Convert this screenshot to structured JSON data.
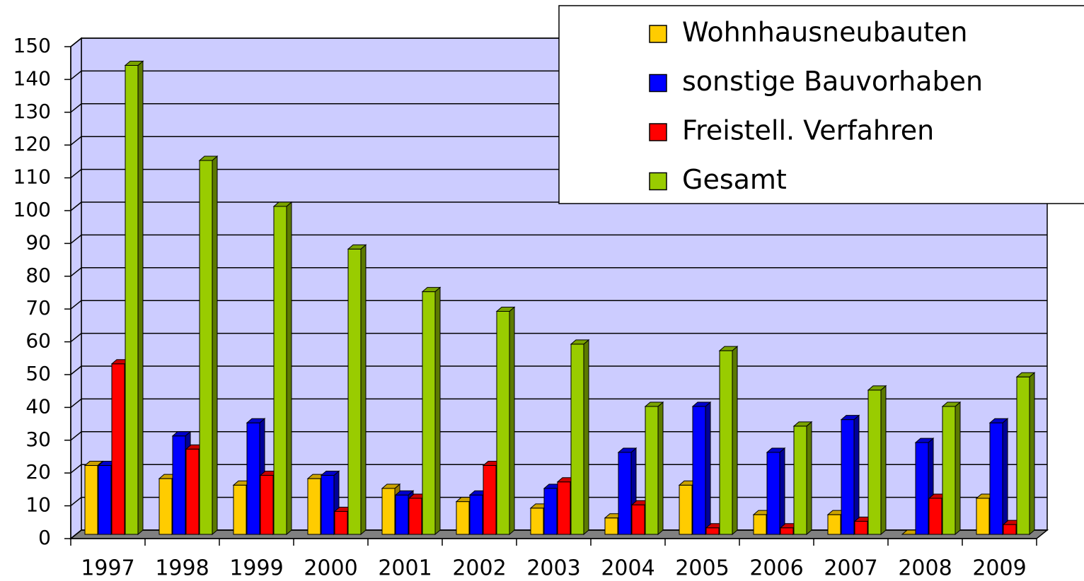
{
  "chart_data": {
    "type": "bar3d",
    "categories": [
      "1997",
      "1998",
      "1999",
      "2000",
      "2001",
      "2002",
      "2003",
      "2004",
      "2005",
      "2006",
      "2007",
      "2008",
      "2009"
    ],
    "series": [
      {
        "name": "Wohnhausneubauten",
        "color": "#ffcc00",
        "values": [
          21,
          17,
          15,
          17,
          14,
          10,
          8,
          5,
          15,
          6,
          6,
          0,
          11
        ]
      },
      {
        "name": "sonstige Bauvorhaben",
        "color": "#0000ff",
        "values": [
          21,
          30,
          34,
          18,
          12,
          12,
          14,
          25,
          39,
          25,
          35,
          28,
          34
        ]
      },
      {
        "name": "Freistell. Verfahren",
        "color": "#ff0000",
        "values": [
          52,
          26,
          18,
          7,
          11,
          21,
          16,
          9,
          2,
          2,
          4,
          11,
          3
        ]
      },
      {
        "name": "Gesamt",
        "color": "#99cc00",
        "values": [
          143,
          114,
          100,
          87,
          74,
          68,
          58,
          39,
          56,
          33,
          44,
          39,
          48
        ]
      }
    ],
    "ylim": [
      0,
      150
    ],
    "yticks": [
      0,
      10,
      20,
      30,
      40,
      50,
      60,
      70,
      80,
      90,
      100,
      110,
      120,
      130,
      140,
      150
    ],
    "grid": true,
    "wall_color": "#ccccff",
    "legend": "top-right"
  }
}
